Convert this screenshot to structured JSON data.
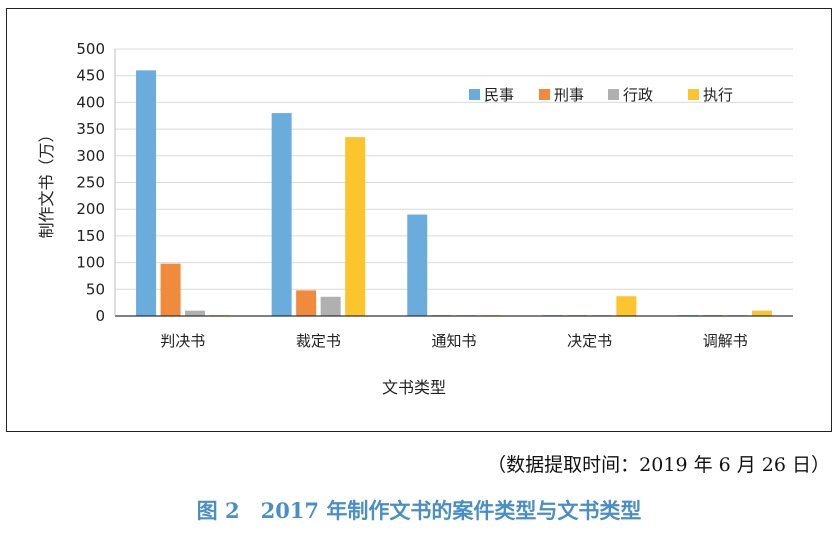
{
  "chart_data": {
    "type": "bar",
    "categories": [
      "判决书",
      "裁定书",
      "通知书",
      "决定书",
      "调解书"
    ],
    "series": [
      {
        "name": "民事",
        "color": "#6aaddd",
        "values": [
          460,
          380,
          190,
          0,
          0
        ]
      },
      {
        "name": "刑事",
        "color": "#f08a3c",
        "values": [
          98,
          48,
          0,
          0,
          0
        ]
      },
      {
        "name": "行政",
        "color": "#b0b0b0",
        "values": [
          10,
          36,
          0,
          0,
          0
        ]
      },
      {
        "name": "执行",
        "color": "#fcc52e",
        "values": [
          0,
          335,
          1,
          37,
          10
        ]
      }
    ],
    "ylim": [
      0,
      500
    ],
    "yticks": [
      "0",
      "50",
      "100",
      "150",
      "200",
      "250",
      "300",
      "350",
      "400",
      "450",
      "500"
    ],
    "ylabel": "制作文书（万）",
    "xlabel": "文书类型",
    "grid": true,
    "legend_position": "top-right"
  },
  "source_note": "（数据提取时间：2019 年 6 月 26 日）",
  "figure_caption": "图 2　2017 年制作文书的案件类型与文书类型"
}
